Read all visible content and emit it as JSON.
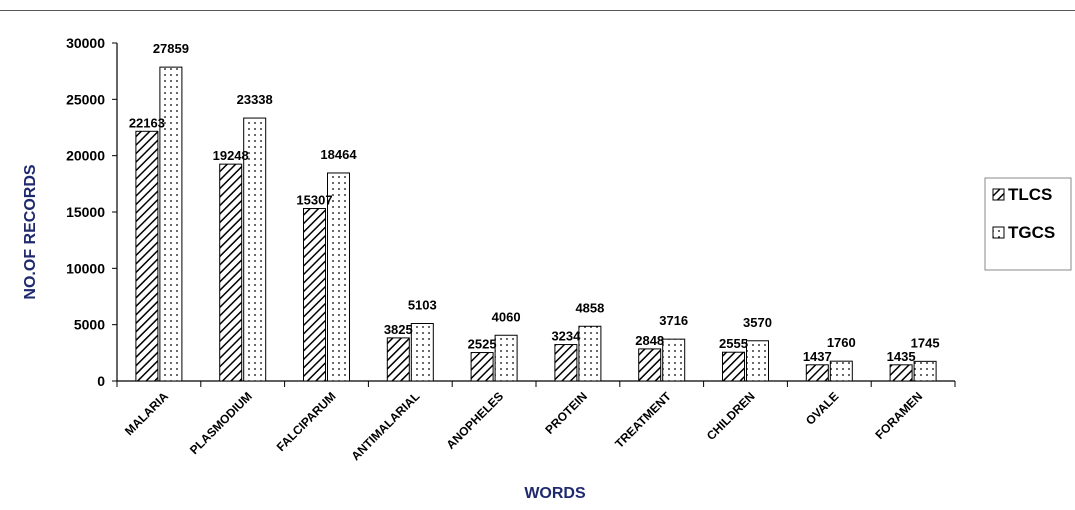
{
  "chart_data": {
    "type": "bar",
    "title": "",
    "xlabel": "WORDS",
    "ylabel": "NO.OF RECORDS",
    "categories": [
      "MALARIA",
      "PLASMODIUM",
      "FALCIPARUM",
      "ANTIMALARIAL",
      "ANOPHELES",
      "PROTEIN",
      "TREATMENT",
      "CHILDREN",
      "OVALE",
      "FORAMEN"
    ],
    "series": [
      {
        "name": "TLCS",
        "values": [
          22163,
          19248,
          15307,
          3825,
          2525,
          3234,
          2848,
          2555,
          1437,
          1435
        ]
      },
      {
        "name": "TGCS",
        "values": [
          27859,
          23338,
          18464,
          5103,
          4060,
          4858,
          3716,
          3570,
          1760,
          1745
        ]
      }
    ],
    "ylim": [
      0,
      30000
    ],
    "yticks": [
      "0",
      "5000",
      "10000",
      "15000",
      "20000",
      "25000",
      "30000"
    ],
    "grid": false,
    "legend": "right"
  }
}
